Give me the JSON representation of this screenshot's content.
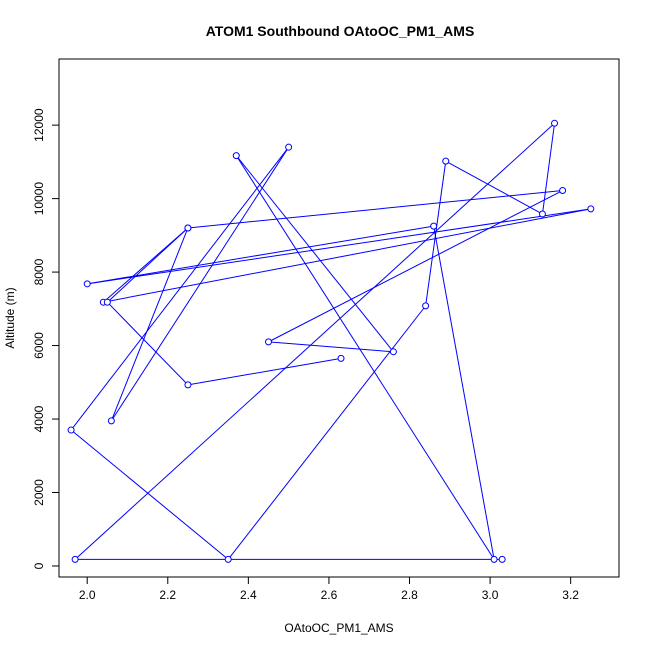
{
  "chart_data": {
    "type": "line",
    "title": "ATOM1 Southbound OAtoOC_PM1_AMS",
    "xlabel": "OAtoOC_PM1_AMS",
    "ylabel": "Altitude (m)",
    "xlim": [
      1.93,
      3.32
    ],
    "ylim": [
      -300,
      13800
    ],
    "xticks": [
      "2.0",
      "2.2",
      "2.4",
      "2.6",
      "2.8",
      "3.0",
      "3.2"
    ],
    "yticks": [
      "0",
      "2000",
      "4000",
      "6000",
      "8000",
      "10000",
      "12000"
    ],
    "grid": false,
    "series_color": "#0000ff",
    "points": [
      {
        "x": 3.03,
        "y": 180
      },
      {
        "x": 1.97,
        "y": 180
      },
      {
        "x": 3.16,
        "y": 12050
      },
      {
        "x": 3.13,
        "y": 9580
      },
      {
        "x": 2.89,
        "y": 11020
      },
      {
        "x": 2.84,
        "y": 7080
      },
      {
        "x": 2.35,
        "y": 180
      },
      {
        "x": 1.96,
        "y": 3700
      },
      {
        "x": 2.5,
        "y": 11400
      },
      {
        "x": 2.06,
        "y": 3950
      },
      {
        "x": 2.25,
        "y": 9200
      },
      {
        "x": 2.04,
        "y": 7180
      },
      {
        "x": 3.25,
        "y": 9720
      },
      {
        "x": 2.0,
        "y": 7680
      },
      {
        "x": 2.86,
        "y": 9250
      },
      {
        "x": 3.01,
        "y": 180
      },
      {
        "x": 2.37,
        "y": 11170
      },
      {
        "x": 2.76,
        "y": 5830
      },
      {
        "x": 2.45,
        "y": 6100
      },
      {
        "x": 3.18,
        "y": 10220
      },
      {
        "x": 2.25,
        "y": 9200
      },
      {
        "x": 2.05,
        "y": 7180
      },
      {
        "x": 2.25,
        "y": 4930
      },
      {
        "x": 2.63,
        "y": 5650
      }
    ]
  }
}
